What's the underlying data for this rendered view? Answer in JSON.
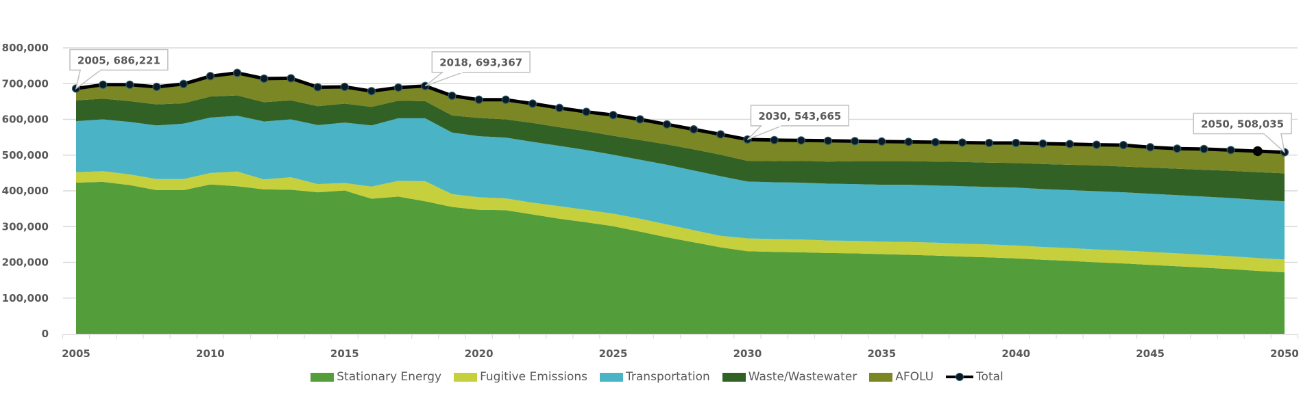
{
  "chart_data": {
    "type": "area",
    "stacked": true,
    "title": "",
    "xlabel": "",
    "ylabel": "",
    "ylim": [
      0,
      800000
    ],
    "yticks": [
      0,
      100000,
      200000,
      300000,
      400000,
      500000,
      600000,
      700000,
      800000
    ],
    "ytick_labels": [
      "0",
      "100,000",
      "200,000",
      "300,000",
      "400,000",
      "500,000",
      "600,000",
      "700,000",
      "800,000"
    ],
    "xtick_labels": [
      "2005",
      "2010",
      "2015",
      "2020",
      "2025",
      "2030",
      "2035",
      "2040",
      "2045",
      "2050"
    ],
    "grid": "horizontal",
    "legend_position": "bottom",
    "x": [
      2005,
      2006,
      2007,
      2008,
      2009,
      2010,
      2011,
      2012,
      2013,
      2014,
      2015,
      2016,
      2017,
      2018,
      2019,
      2020,
      2021,
      2022,
      2023,
      2024,
      2025,
      2026,
      2027,
      2028,
      2029,
      2030,
      2031,
      2032,
      2033,
      2034,
      2035,
      2036,
      2037,
      2038,
      2039,
      2040,
      2041,
      2042,
      2043,
      2044,
      2045,
      2046,
      2047,
      2048,
      2049,
      2050
    ],
    "series": [
      {
        "name": "Stationary Energy",
        "color": "#539e3a",
        "values": [
          423000,
          425000,
          416000,
          402000,
          402000,
          418000,
          413000,
          404000,
          403000,
          396000,
          401000,
          378000,
          384000,
          371000,
          355000,
          347000,
          346000,
          334000,
          322000,
          312000,
          301000,
          286000,
          270000,
          256000,
          242000,
          231000,
          229000,
          228000,
          226000,
          225000,
          223000,
          221000,
          219000,
          216000,
          214000,
          211000,
          207000,
          204000,
          200000,
          197000,
          193000,
          189000,
          185000,
          181000,
          176000,
          172000
        ]
      },
      {
        "name": "Fugitive Emissions",
        "color": "#c6cf3c",
        "values": [
          29000,
          30000,
          30000,
          31000,
          31000,
          32000,
          41000,
          28000,
          35000,
          23000,
          21000,
          34000,
          44000,
          56000,
          36000,
          35000,
          33000,
          33000,
          35000,
          35000,
          35000,
          36000,
          36000,
          34000,
          32000,
          36000,
          36000,
          36000,
          35000,
          35000,
          35000,
          36000,
          36000,
          36000,
          36000,
          36000,
          36000,
          36000,
          36000,
          36000,
          36000,
          36000,
          36000,
          36000,
          36000,
          36000
        ]
      },
      {
        "name": "Transportation",
        "color": "#4ab3c6",
        "values": [
          143000,
          145000,
          147000,
          150000,
          155000,
          155000,
          156000,
          162000,
          162000,
          165000,
          169000,
          171000,
          175000,
          176000,
          172000,
          171000,
          170000,
          170000,
          169000,
          167000,
          165000,
          165000,
          167000,
          167000,
          167000,
          159000,
          159000,
          159000,
          159000,
          159000,
          159000,
          160000,
          160000,
          161000,
          161000,
          162000,
          162000,
          162000,
          163000,
          163000,
          163000,
          163000,
          163000,
          163000,
          163000,
          163000
        ]
      },
      {
        "name": "Waste/Wastewater",
        "color": "#316125",
        "values": [
          58000,
          58000,
          58000,
          59000,
          57000,
          59000,
          57000,
          54000,
          53000,
          53000,
          53000,
          52000,
          49000,
          48000,
          48000,
          51000,
          51000,
          53000,
          52000,
          53000,
          53000,
          55000,
          57000,
          59000,
          60000,
          58000,
          59000,
          61000,
          62000,
          64000,
          66000,
          66000,
          67000,
          68000,
          68000,
          69000,
          70000,
          71000,
          72000,
          72000,
          73000,
          74000,
          75000,
          76000,
          77000,
          78000
        ]
      },
      {
        "name": "AFOLU",
        "color": "#7b8625",
        "values": [
          33221,
          39000,
          46000,
          49000,
          54000,
          57000,
          63000,
          66000,
          62000,
          53000,
          47000,
          44000,
          37000,
          42367,
          55000,
          51000,
          55000,
          54000,
          54000,
          54000,
          58000,
          58000,
          56000,
          56000,
          57000,
          59665,
          59000,
          57000,
          58000,
          56000,
          55000,
          54000,
          54000,
          54000,
          55000,
          56000,
          57000,
          58000,
          58000,
          58000,
          57000,
          57000,
          58000,
          58000,
          59000,
          59035
        ]
      }
    ],
    "total_series": {
      "name": "Total",
      "color": "#000000",
      "marker": "circle",
      "values": [
        686221,
        697000,
        697000,
        691000,
        699000,
        721000,
        730000,
        714000,
        715000,
        690000,
        691000,
        679000,
        689000,
        693367,
        666000,
        655000,
        655000,
        644000,
        632000,
        621000,
        612000,
        600000,
        586000,
        572000,
        558000,
        543665,
        542000,
        541000,
        540000,
        539000,
        538000,
        537000,
        536000,
        535000,
        534000,
        534000,
        532000,
        531000,
        529000,
        528000,
        522000,
        518000,
        517000,
        514000,
        511000,
        508035
      ],
      "highlighted_point": 2049
    },
    "annotations": [
      {
        "x": 2005,
        "y": 686221,
        "label": "2005, 686,221"
      },
      {
        "x": 2018,
        "y": 693367,
        "label": "2018, 693,367"
      },
      {
        "x": 2030,
        "y": 543665,
        "label": "2030, 543,665"
      },
      {
        "x": 2050,
        "y": 508035,
        "label": "2050, 508,035"
      }
    ]
  },
  "legend": {
    "items": [
      {
        "label": "Stationary Energy",
        "color": "#539e3a",
        "kind": "area"
      },
      {
        "label": "Fugitive Emissions",
        "color": "#c6cf3c",
        "kind": "area"
      },
      {
        "label": "Transportation",
        "color": "#4ab3c6",
        "kind": "area"
      },
      {
        "label": "Waste/Wastewater",
        "color": "#316125",
        "kind": "area"
      },
      {
        "label": "AFOLU",
        "color": "#7b8625",
        "kind": "area"
      },
      {
        "label": "Total",
        "color": "#000000",
        "kind": "line-marker"
      }
    ]
  }
}
